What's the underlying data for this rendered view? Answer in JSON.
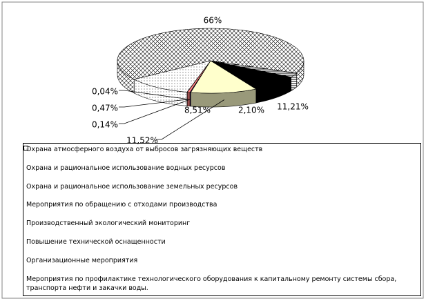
{
  "chart_data": {
    "type": "pie3d",
    "categories": [
      "Охрана атмосферного воздуха от выбросов загрязняющих веществ",
      "Охрана и рациональное использование водных ресурсов",
      "Охрана и рациональное использование земельных ресурсов",
      "Мероприятия по обращению с отходами производства",
      "Производственный экологический мониторинг",
      "Повышение технической оснащенности",
      "Организационные мероприятия",
      "Мероприятия по профилактике технологического оборудования к капитальному ремонту системы сбора, транспорта нефти и закачки воды."
    ],
    "values": [
      66,
      2.1,
      8.51,
      11.52,
      0.14,
      0.47,
      0.04,
      11.21
    ],
    "value_labels": [
      "66%",
      "2,10%",
      "8,51%",
      "11,52%",
      "0,14%",
      "0,47%",
      "0,04%",
      "11,21%"
    ],
    "colors": [
      "#ffffff",
      "#ffffff",
      "#000000",
      "#ffffcc",
      "#330066",
      "#ff8080",
      "#0066cc",
      "#ffffff"
    ],
    "patterns": [
      "crosshatch",
      "hlines",
      null,
      null,
      null,
      null,
      null,
      "dots"
    ],
    "legend": "bottom"
  }
}
